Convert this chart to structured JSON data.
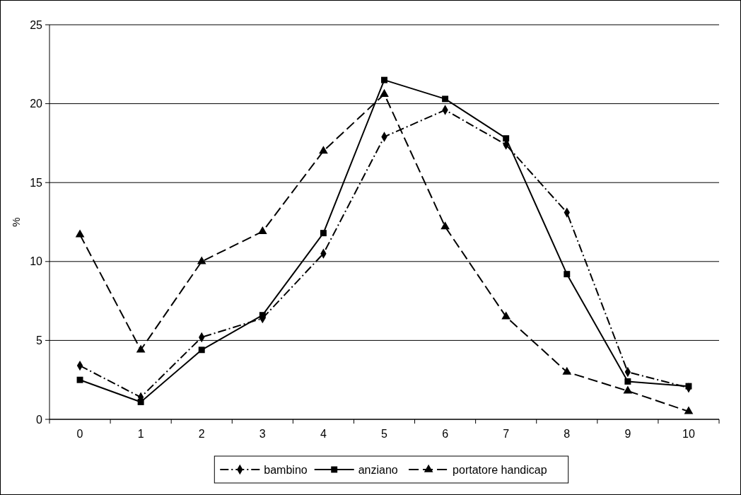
{
  "chart_data": {
    "type": "line",
    "ylabel": "%",
    "categories": [
      "0",
      "1",
      "2",
      "3",
      "4",
      "5",
      "6",
      "7",
      "8",
      "9",
      "10"
    ],
    "ylim": [
      0,
      25
    ],
    "yticks": [
      0,
      5,
      10,
      15,
      20,
      25
    ],
    "grid": "y",
    "legend": "bottom",
    "series": [
      {
        "name": "bambino",
        "color": "#000000",
        "marker": "diamond",
        "line_style": "dashdot",
        "values": [
          3.4,
          1.4,
          5.2,
          6.4,
          10.5,
          17.9,
          19.6,
          17.4,
          13.1,
          3.0,
          2.0
        ]
      },
      {
        "name": "anziano",
        "color": "#000000",
        "marker": "square",
        "line_style": "solid",
        "values": [
          2.5,
          1.1,
          4.4,
          6.6,
          11.8,
          21.5,
          20.3,
          17.8,
          9.2,
          2.4,
          2.1
        ]
      },
      {
        "name": "portatore handicap",
        "color": "#000000",
        "marker": "triangle",
        "line_style": "dashed",
        "values": [
          11.7,
          4.4,
          10.0,
          11.9,
          17.0,
          20.6,
          12.2,
          6.5,
          3.0,
          1.8,
          0.5
        ]
      }
    ]
  }
}
